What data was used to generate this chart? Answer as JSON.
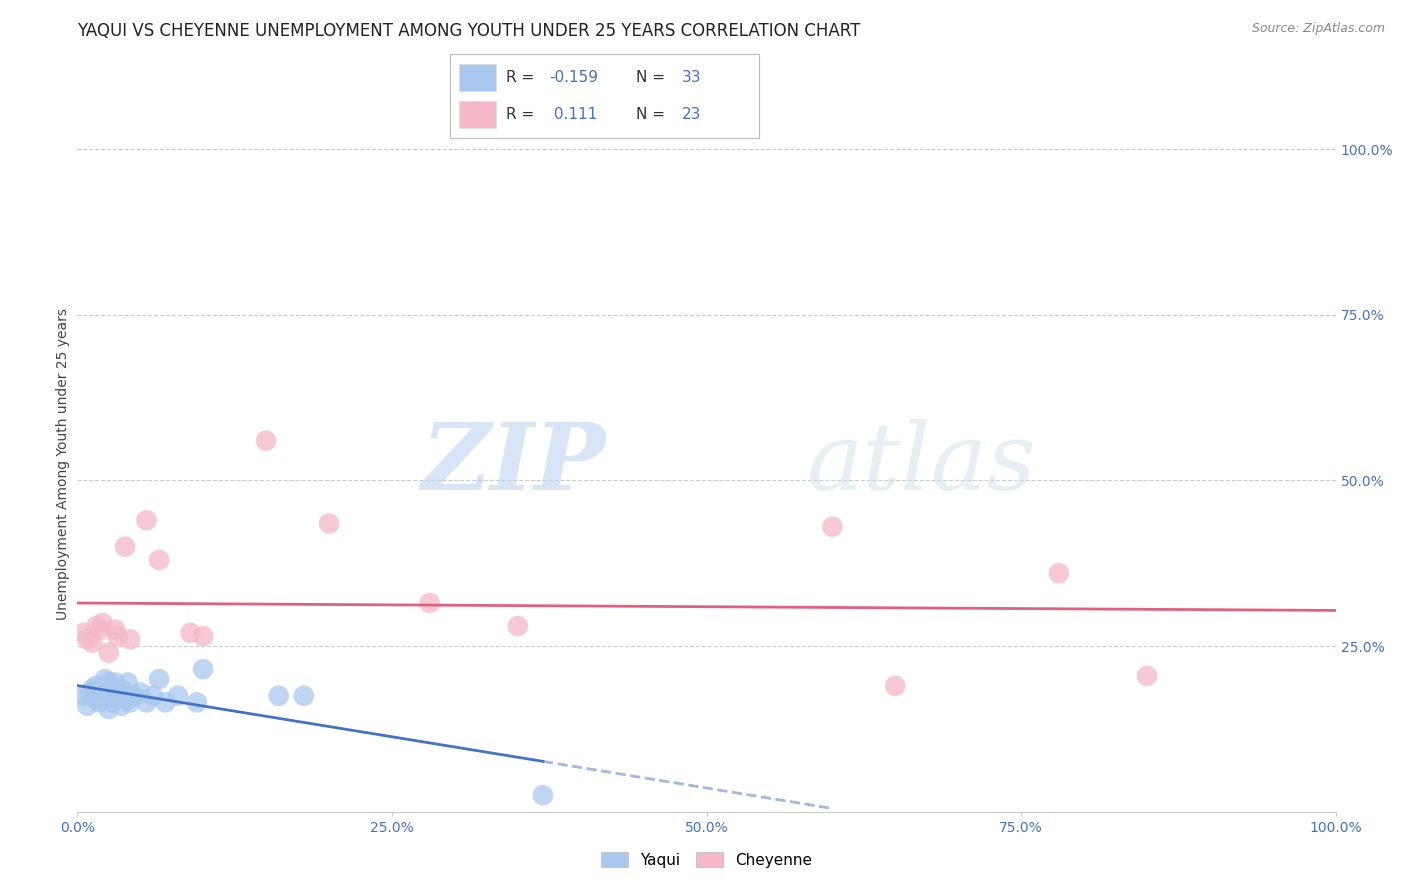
{
  "title": "YAQUI VS CHEYENNE UNEMPLOYMENT AMONG YOUTH UNDER 25 YEARS CORRELATION CHART",
  "source": "Source: ZipAtlas.com",
  "ylabel": "Unemployment Among Youth under 25 years",
  "xlim": [
    0,
    1.0
  ],
  "ylim": [
    0,
    1.05
  ],
  "xtick_labels": [
    "0.0%",
    "25.0%",
    "50.0%",
    "75.0%",
    "100.0%"
  ],
  "xtick_vals": [
    0.0,
    0.25,
    0.5,
    0.75,
    1.0
  ],
  "ytick_vals": [
    0.25,
    0.5,
    0.75,
    1.0
  ],
  "right_ytick_labels": [
    "25.0%",
    "50.0%",
    "75.0%",
    "100.0%"
  ],
  "watermark_zip": "ZIP",
  "watermark_atlas": "atlas",
  "legend_R_yaqui": "-0.159",
  "legend_N_yaqui": "33",
  "legend_R_cheyenne": "0.111",
  "legend_N_cheyenne": "23",
  "yaqui_color": "#a8c8f0",
  "cheyenne_color": "#f5b8c8",
  "yaqui_line_color": "#4472c4",
  "cheyenne_line_color": "#e06080",
  "tick_color": "#4472c4",
  "grid_color": "#cccccc",
  "background_color": "#ffffff",
  "yaqui_x": [
    0.005,
    0.008,
    0.01,
    0.012,
    0.015,
    0.015,
    0.018,
    0.02,
    0.022,
    0.025,
    0.025,
    0.028,
    0.03,
    0.03,
    0.032,
    0.035,
    0.035,
    0.038,
    0.04,
    0.04,
    0.042,
    0.045,
    0.05,
    0.055,
    0.06,
    0.065,
    0.07,
    0.08,
    0.095,
    0.1,
    0.16,
    0.18,
    0.37
  ],
  "yaqui_y": [
    0.175,
    0.16,
    0.18,
    0.185,
    0.17,
    0.19,
    0.165,
    0.18,
    0.2,
    0.155,
    0.195,
    0.165,
    0.175,
    0.195,
    0.18,
    0.16,
    0.185,
    0.175,
    0.17,
    0.195,
    0.165,
    0.175,
    0.18,
    0.165,
    0.175,
    0.2,
    0.165,
    0.175,
    0.165,
    0.215,
    0.175,
    0.175,
    0.025
  ],
  "cheyenne_x": [
    0.005,
    0.008,
    0.012,
    0.015,
    0.018,
    0.02,
    0.025,
    0.03,
    0.032,
    0.038,
    0.042,
    0.055,
    0.065,
    0.09,
    0.1,
    0.15,
    0.2,
    0.28,
    0.35,
    0.6,
    0.65,
    0.78,
    0.85
  ],
  "cheyenne_y": [
    0.27,
    0.26,
    0.255,
    0.28,
    0.275,
    0.285,
    0.24,
    0.275,
    0.265,
    0.4,
    0.26,
    0.44,
    0.38,
    0.27,
    0.265,
    0.56,
    0.435,
    0.315,
    0.28,
    0.43,
    0.19,
    0.36,
    0.205
  ],
  "title_fontsize": 12,
  "label_fontsize": 10,
  "tick_fontsize": 10,
  "legend_fontsize": 11,
  "source_fontsize": 9
}
